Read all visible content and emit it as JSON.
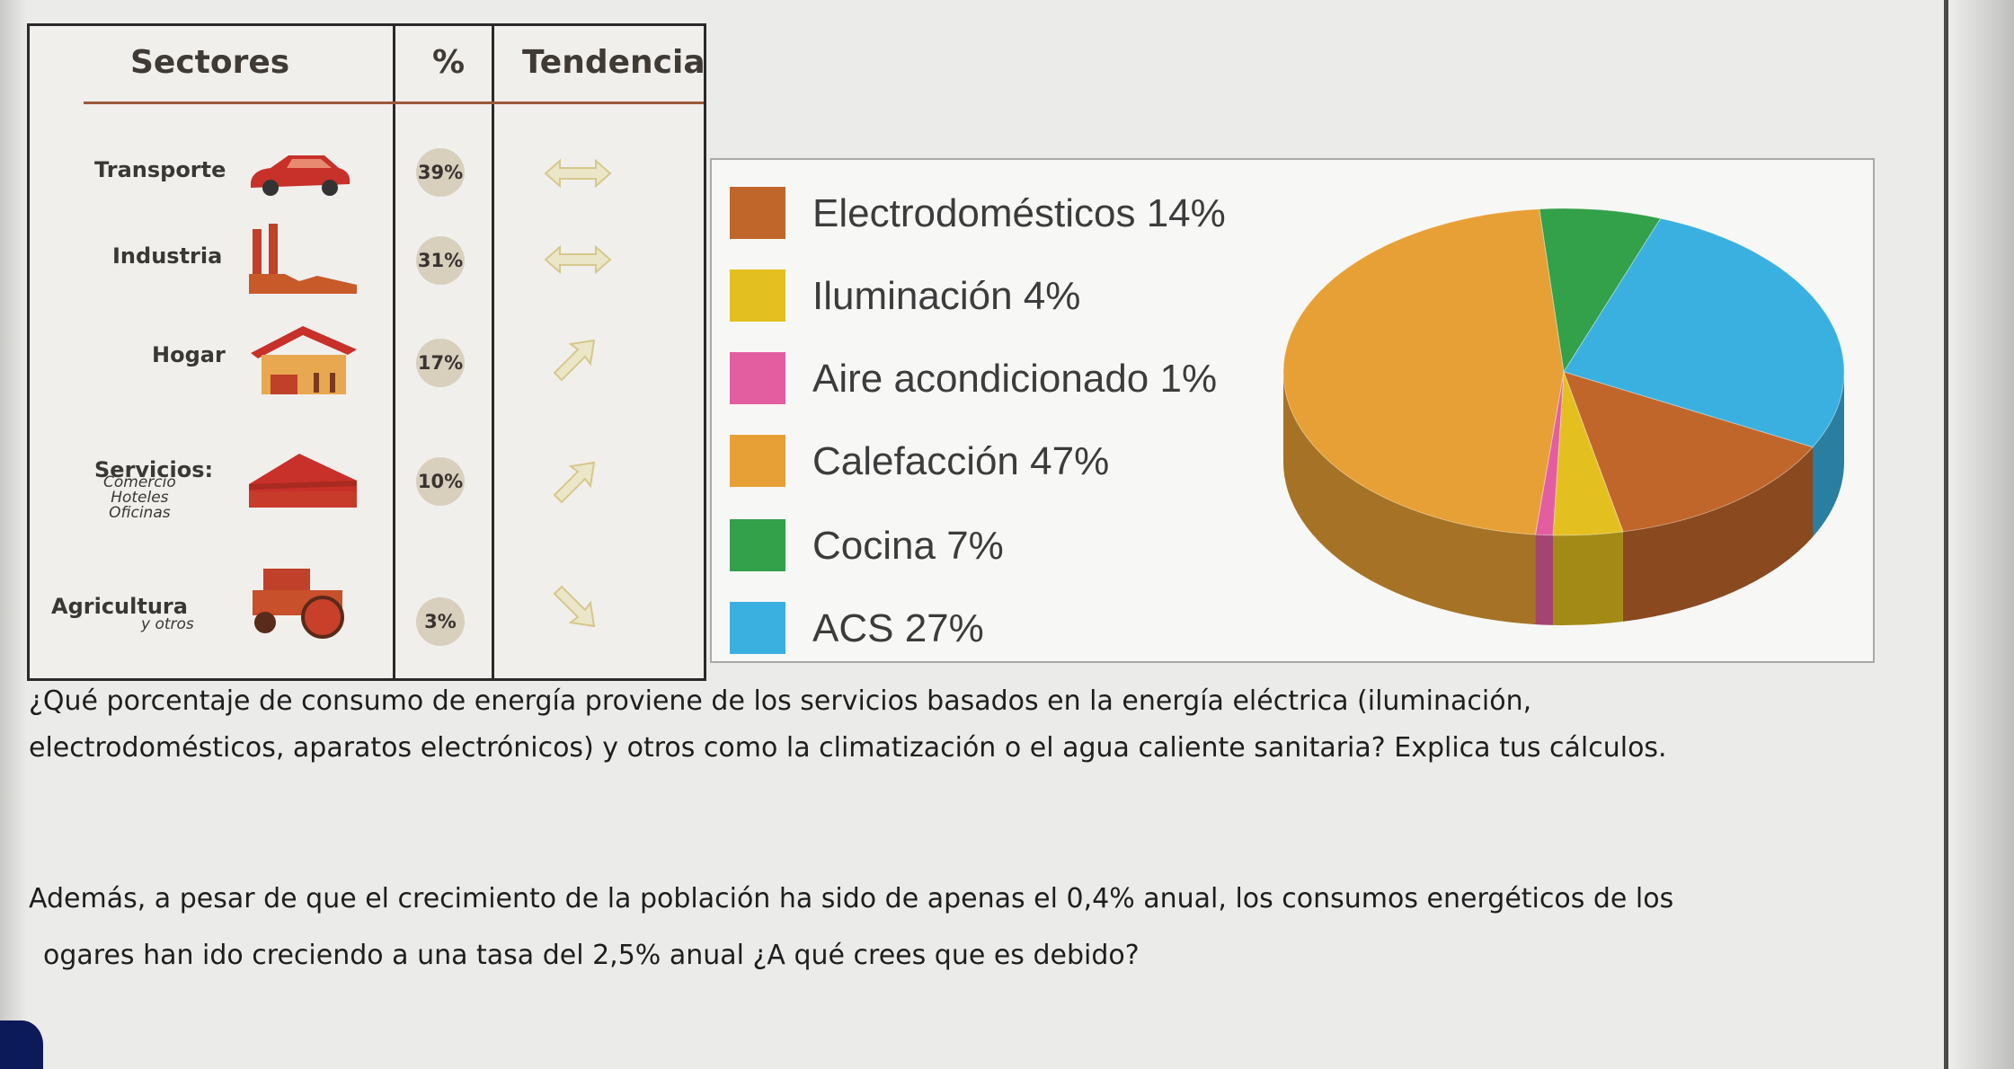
{
  "table": {
    "headers": {
      "sector": "Sectores",
      "percent": "%",
      "trend": "Tendencia"
    },
    "rows": [
      {
        "name": "Transporte",
        "sub": "",
        "pct": "39%",
        "icon": "car-icon",
        "trend": "sideways"
      },
      {
        "name": "Industria",
        "sub": "",
        "pct": "31%",
        "icon": "factory-icon",
        "trend": "sideways"
      },
      {
        "name": "Hogar",
        "sub": "",
        "pct": "17%",
        "icon": "house-icon",
        "trend": "up"
      },
      {
        "name": "Servicios:",
        "sub": "Comercio\nHoteles\nOficinas",
        "pct": "10%",
        "icon": "building-icon",
        "trend": "up"
      },
      {
        "name": "Agricultura",
        "sub": "y otros",
        "pct": "3%",
        "icon": "tractor-icon",
        "trend": "down"
      }
    ]
  },
  "chart_data": {
    "type": "pie",
    "title": "",
    "series": [
      {
        "name": "Electrodomésticos",
        "value": 14,
        "label": "Electrodomésticos 14%",
        "color": "#c0662a"
      },
      {
        "name": "Iluminación",
        "value": 4,
        "label": "Iluminación 4%",
        "color": "#e3c020"
      },
      {
        "name": "Aire acondicionado",
        "value": 1,
        "label": "Aire acondicionado 1%",
        "color": "#e35ea0"
      },
      {
        "name": "Calefacción",
        "value": 47,
        "label": "Calefacción 47%",
        "color": "#e7a035"
      },
      {
        "name": "Cocina",
        "value": 7,
        "label": "Cocina 7%",
        "color": "#33a04a"
      },
      {
        "name": "ACS",
        "value": 27,
        "label": "ACS 27%",
        "color": "#3ab0e0"
      }
    ],
    "legend": "left"
  },
  "questions": {
    "q1_line1": "¿Qué porcentaje de consumo de energía proviene de los servicios basados en la energía eléctrica (iluminación,",
    "q1_line2": "electrodomésticos, aparatos electrónicos) y otros como la climatización o el agua caliente sanitaria? Explica tus cálculos.",
    "q2_line1": "Además, a pesar de que el crecimiento de la población ha sido de apenas el 0,4% anual, los consumos energéticos de los",
    "q2_line2": "ogares han ido creciendo a una tasa del 2,5% anual ¿A qué crees que es debido?"
  }
}
